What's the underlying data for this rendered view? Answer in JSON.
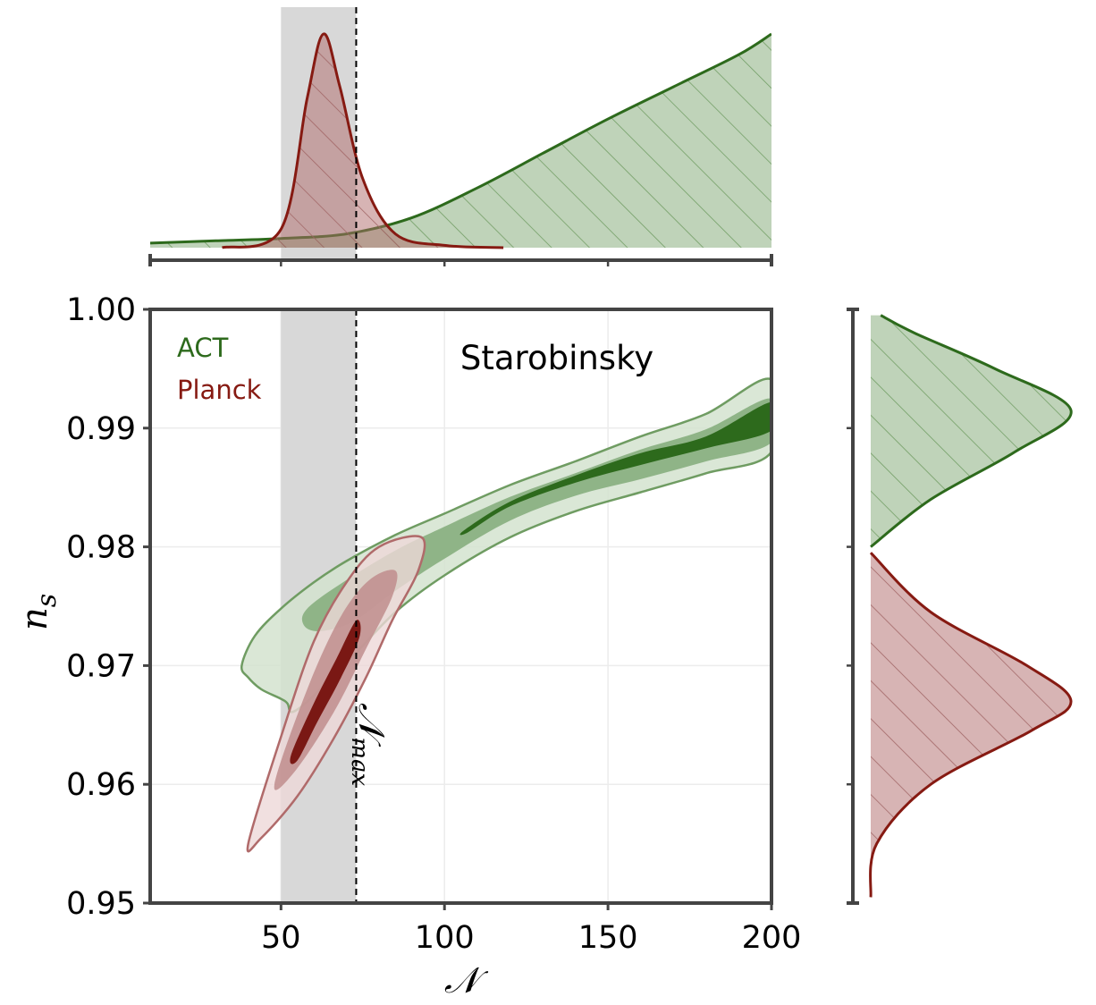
{
  "chart_data": {
    "type": "contour",
    "title": "Starobinsky",
    "xlabel": "𝒩",
    "ylabel": "n",
    "ylabel_subscript": "s",
    "xlim": [
      10,
      200
    ],
    "ylim": [
      0.95,
      1.0
    ],
    "xticks": [
      50,
      100,
      150,
      200
    ],
    "xtick_labels": [
      "50",
      "100",
      "150",
      "200"
    ],
    "yticks": [
      0.95,
      0.96,
      0.97,
      0.98,
      0.99,
      1.0
    ],
    "ytick_labels": [
      "0.95",
      "0.96",
      "0.97",
      "0.98",
      "0.99",
      "1.00"
    ],
    "grid": true,
    "shaded_band": {
      "x_from": 50,
      "x_to": 73
    },
    "reference_line": {
      "x": 73,
      "label": "𝒩",
      "label_subscript": "max"
    },
    "legend": [
      {
        "name": "ACT",
        "color": "#2d6a1c"
      },
      {
        "name": "Planck",
        "color": "#861a12"
      }
    ],
    "colors": {
      "act_line": "#2d6a1c",
      "act_dark": "#2d6a1c",
      "act_mid": "#8fb487",
      "act_light": "#d3e3cf",
      "planck_line": "#861a12",
      "planck_dark": "#7a1814",
      "planck_mid": "#c08d8d",
      "planck_light": "#eed8d8",
      "band": "#d8d8d8"
    },
    "series": [
      {
        "name": "ACT",
        "contours_68_95_99": {
          "outer_99": [
            [
              38,
              0.97
            ],
            [
              42,
              0.9725
            ],
            [
              50,
              0.9748
            ],
            [
              60,
              0.977
            ],
            [
              70,
              0.9788
            ],
            [
              85,
              0.981
            ],
            [
              100,
              0.9828
            ],
            [
              120,
              0.9852
            ],
            [
              140,
              0.9872
            ],
            [
              160,
              0.9893
            ],
            [
              180,
              0.9912
            ],
            [
              200,
              0.9941
            ],
            [
              200,
              0.988
            ],
            [
              180,
              0.9862
            ],
            [
              160,
              0.9846
            ],
            [
              140,
              0.983
            ],
            [
              120,
              0.9808
            ],
            [
              100,
              0.9776
            ],
            [
              85,
              0.9745
            ],
            [
              72,
              0.9708
            ],
            [
              62,
              0.968
            ],
            [
              56,
              0.9665
            ],
            [
              53,
              0.9661
            ],
            [
              52,
              0.9668
            ],
            [
              50,
              0.9672
            ],
            [
              44,
              0.968
            ],
            [
              40,
              0.969
            ]
          ],
          "mid_95": [
            [
              58,
              0.9748
            ],
            [
              70,
              0.9772
            ],
            [
              85,
              0.9797
            ],
            [
              100,
              0.9817
            ],
            [
              120,
              0.9842
            ],
            [
              140,
              0.9862
            ],
            [
              160,
              0.9882
            ],
            [
              180,
              0.9899
            ],
            [
              200,
              0.9925
            ],
            [
              200,
              0.9888
            ],
            [
              180,
              0.9872
            ],
            [
              160,
              0.9857
            ],
            [
              140,
              0.9843
            ],
            [
              120,
              0.9822
            ],
            [
              100,
              0.979
            ],
            [
              85,
              0.9763
            ],
            [
              72,
              0.9737
            ],
            [
              62,
              0.9729
            ],
            [
              57,
              0.9734
            ]
          ],
          "inner_68": [
            [
              106,
              0.9814
            ],
            [
              120,
              0.9838
            ],
            [
              140,
              0.986
            ],
            [
              160,
              0.9879
            ],
            [
              180,
              0.9893
            ],
            [
              200,
              0.9922
            ],
            [
              200,
              0.9898
            ],
            [
              180,
              0.9883
            ],
            [
              160,
              0.9869
            ],
            [
              140,
              0.9854
            ],
            [
              120,
              0.9834
            ],
            [
              107,
              0.9812
            ]
          ]
        },
        "marginal_x": [
          [
            10,
            0.02
          ],
          [
            30,
            0.03
          ],
          [
            50,
            0.04
          ],
          [
            70,
            0.06
          ],
          [
            90,
            0.13
          ],
          [
            110,
            0.26
          ],
          [
            130,
            0.41
          ],
          [
            150,
            0.56
          ],
          [
            170,
            0.7
          ],
          [
            190,
            0.84
          ],
          [
            200,
            0.93
          ]
        ],
        "marginal_y": [
          [
            0.98,
            0.0
          ],
          [
            0.984,
            0.3
          ],
          [
            0.988,
            0.72
          ],
          [
            0.9915,
            1.0
          ],
          [
            0.995,
            0.62
          ],
          [
            0.998,
            0.22
          ],
          [
            0.9995,
            0.05
          ]
        ]
      },
      {
        "name": "Planck",
        "contours_68_95_99": {
          "outer_99": [
            [
              40,
              0.955
            ],
            [
              50,
              0.964
            ],
            [
              60,
              0.972
            ],
            [
              70,
              0.977
            ],
            [
              80,
              0.98
            ],
            [
              93,
              0.9808
            ],
            [
              92,
              0.978
            ],
            [
              84,
              0.9738
            ],
            [
              76,
              0.969
            ],
            [
              66,
              0.9638
            ],
            [
              55,
              0.959
            ],
            [
              44,
              0.9555
            ]
          ],
          "mid_95": [
            [
              48,
              0.96
            ],
            [
              58,
              0.968
            ],
            [
              68,
              0.974
            ],
            [
              77,
              0.9772
            ],
            [
              85,
              0.978
            ],
            [
              84,
              0.9758
            ],
            [
              76,
              0.9714
            ],
            [
              66,
              0.966
            ],
            [
              54,
              0.961
            ]
          ],
          "inner_68": [
            [
              53,
              0.9624
            ],
            [
              60,
              0.9668
            ],
            [
              67,
              0.9706
            ],
            [
              73,
              0.9738
            ],
            [
              74,
              0.9724
            ],
            [
              68,
              0.9688
            ],
            [
              61,
              0.9652
            ],
            [
              55,
              0.962
            ]
          ]
        },
        "marginal_x": [
          [
            32,
            0.0
          ],
          [
            50,
            0.08
          ],
          [
            58,
            0.65
          ],
          [
            63,
            0.93
          ],
          [
            68,
            0.7
          ],
          [
            75,
            0.3
          ],
          [
            85,
            0.06
          ],
          [
            100,
            0.01
          ],
          [
            118,
            0.0
          ]
        ],
        "marginal_y": [
          [
            0.9505,
            0.0
          ],
          [
            0.955,
            0.03
          ],
          [
            0.96,
            0.3
          ],
          [
            0.9645,
            0.8
          ],
          [
            0.967,
            1.0
          ],
          [
            0.97,
            0.78
          ],
          [
            0.9745,
            0.3
          ],
          [
            0.9795,
            0.0
          ]
        ]
      }
    ]
  }
}
